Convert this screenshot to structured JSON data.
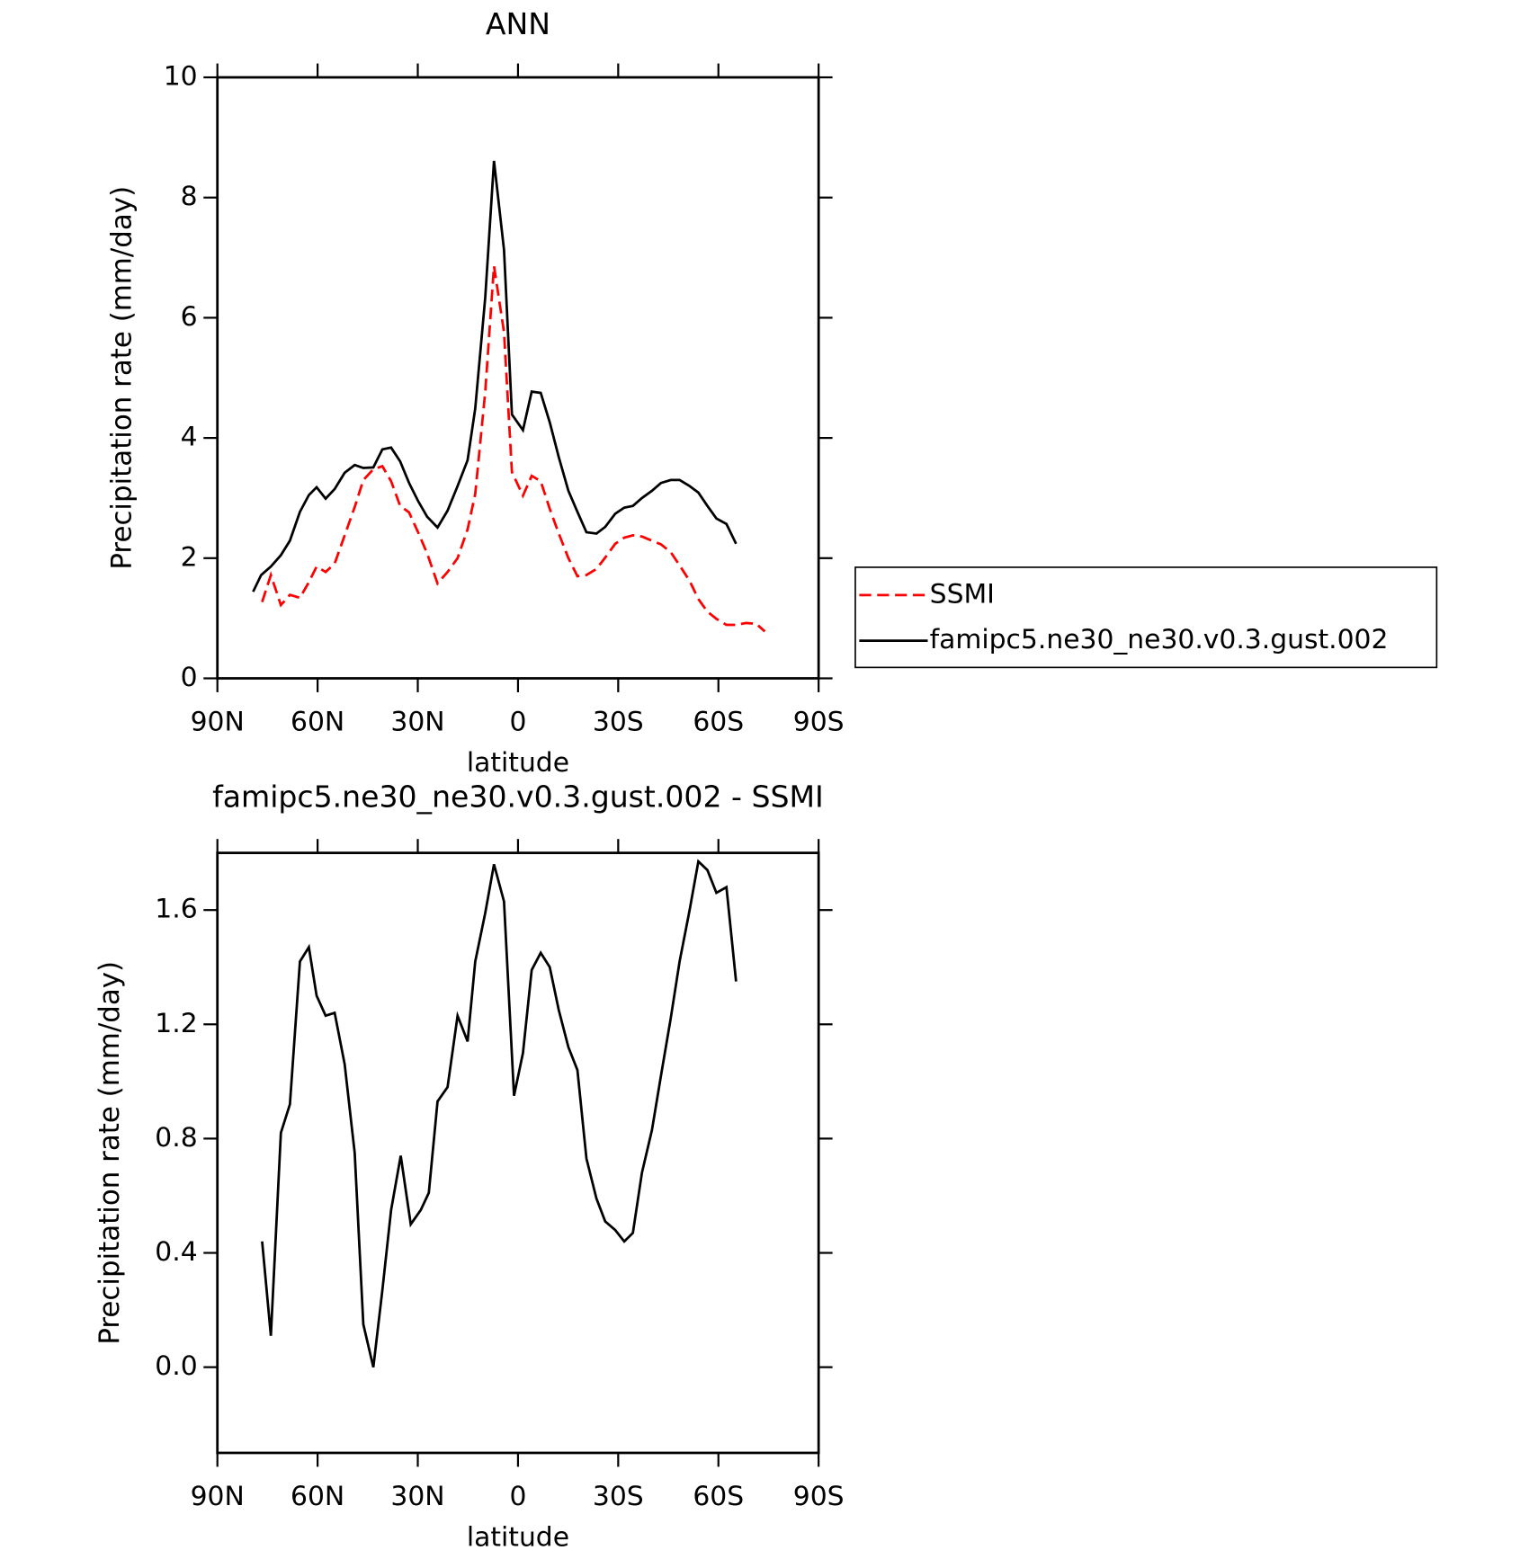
{
  "chart_data": [
    {
      "type": "line",
      "title": "ANN",
      "x_label": "latitude",
      "y_label": "Precipitation rate (mm/day)",
      "xlim": [
        90,
        -90
      ],
      "xticks": [
        {
          "value": 90,
          "label": "90N"
        },
        {
          "value": 60,
          "label": "60N"
        },
        {
          "value": 30,
          "label": "30N"
        },
        0,
        {
          "value": -30,
          "label": "30S"
        },
        {
          "value": -60,
          "label": "60S"
        },
        {
          "value": -90,
          "label": "90S"
        }
      ],
      "ylim": [
        0,
        10
      ],
      "yticks": [
        0,
        2,
        4,
        6,
        8,
        10
      ],
      "legend": "outside-right",
      "series": [
        {
          "name": "SSMI",
          "color": "#ff0000",
          "linestyle": "dashed",
          "x": [
            76.6,
            74.0,
            71.0,
            68.3,
            65.3,
            62.6,
            60.3,
            57.6,
            54.9,
            51.9,
            48.9,
            46.3,
            43.3,
            40.6,
            38.0,
            35.3,
            32.6,
            29.9,
            27.2,
            24.1,
            21.1,
            18.1,
            15.1,
            12.8,
            9.8,
            7.2,
            4.2,
            1.8,
            -1.5,
            -4.1,
            -6.8,
            -9.5,
            -12.2,
            -15.1,
            -17.8,
            -20.5,
            -23.5,
            -26.1,
            -29.1,
            -31.8,
            -34.4,
            -37.1,
            -40.1,
            -42.8,
            -45.7,
            -48.4,
            -51.4,
            -54.0,
            -56.7,
            -59.4,
            -62.4,
            -65.3,
            -68.3,
            -71.3,
            -73.9
          ],
          "values": [
            1.27,
            1.72,
            1.22,
            1.39,
            1.34,
            1.6,
            1.86,
            1.77,
            1.91,
            2.38,
            2.85,
            3.3,
            3.48,
            3.53,
            3.28,
            2.87,
            2.76,
            2.43,
            2.08,
            1.58,
            1.77,
            2.0,
            2.48,
            3.07,
            4.77,
            6.86,
            5.76,
            3.43,
            3.04,
            3.37,
            3.28,
            2.82,
            2.41,
            2.0,
            1.7,
            1.72,
            1.82,
            2.01,
            2.24,
            2.34,
            2.38,
            2.36,
            2.29,
            2.23,
            2.1,
            1.88,
            1.62,
            1.32,
            1.11,
            0.99,
            0.89,
            0.89,
            0.92,
            0.91,
            0.78
          ]
        },
        {
          "name": "famipc5.ne30_ne30.v0.3.gust.002",
          "color": "#000000",
          "linestyle": "solid",
          "x": [
            79.3,
            76.9,
            74.0,
            71.0,
            68.3,
            65.3,
            62.6,
            60.3,
            57.6,
            54.9,
            51.9,
            48.9,
            46.3,
            43.3,
            40.6,
            38.0,
            35.3,
            32.6,
            29.9,
            27.2,
            24.1,
            21.1,
            18.1,
            15.1,
            12.8,
            9.8,
            7.2,
            4.2,
            1.8,
            -1.5,
            -4.1,
            -6.8,
            -9.5,
            -12.2,
            -15.1,
            -17.8,
            -20.5,
            -23.5,
            -26.1,
            -29.1,
            -31.8,
            -34.4,
            -37.1,
            -40.1,
            -42.8,
            -45.7,
            -48.4,
            -51.4,
            -54.0,
            -56.7,
            -59.4,
            -62.4,
            -65.3
          ],
          "values": [
            1.44,
            1.72,
            1.86,
            2.05,
            2.29,
            2.77,
            3.05,
            3.18,
            2.99,
            3.15,
            3.42,
            3.55,
            3.5,
            3.51,
            3.81,
            3.84,
            3.61,
            3.25,
            2.95,
            2.69,
            2.51,
            2.79,
            3.2,
            3.63,
            4.49,
            6.34,
            8.61,
            7.13,
            4.39,
            4.13,
            4.77,
            4.75,
            4.26,
            3.68,
            3.12,
            2.77,
            2.43,
            2.41,
            2.52,
            2.74,
            2.84,
            2.87,
            3.0,
            3.12,
            3.25,
            3.3,
            3.3,
            3.2,
            3.09,
            2.87,
            2.66,
            2.57,
            2.24
          ]
        }
      ]
    },
    {
      "type": "line",
      "title": "famipc5.ne30_ne30.v0.3.gust.002 - SSMI",
      "x_label": "latitude",
      "y_label": "Precipitation rate (mm/day)",
      "xlim": [
        90,
        -90
      ],
      "xticks": [
        {
          "value": 90,
          "label": "90N"
        },
        {
          "value": 60,
          "label": "60N"
        },
        {
          "value": 30,
          "label": "30N"
        },
        0,
        {
          "value": -30,
          "label": "30S"
        },
        {
          "value": -60,
          "label": "60S"
        },
        {
          "value": -90,
          "label": "90S"
        }
      ],
      "ylim": [
        -0.3,
        1.8
      ],
      "yticks": [
        {
          "value": 0,
          "label": "0.0"
        },
        0.4,
        0.8,
        1.2,
        1.6
      ],
      "series": [
        {
          "color": "#000000",
          "linestyle": "solid",
          "x": [
            76.6,
            74.0,
            71.0,
            68.3,
            65.3,
            62.6,
            60.3,
            57.6,
            54.9,
            51.9,
            48.9,
            46.3,
            43.3,
            40.6,
            38.0,
            35.1,
            32.1,
            29.1,
            26.7,
            24.1,
            21.1,
            18.1,
            15.1,
            12.8,
            9.8,
            7.2,
            4.2,
            1.2,
            -1.5,
            -4.1,
            -6.8,
            -9.5,
            -12.2,
            -15.1,
            -17.8,
            -20.5,
            -23.5,
            -26.1,
            -29.1,
            -31.8,
            -34.4,
            -37.1,
            -40.1,
            -42.8,
            -45.7,
            -48.4,
            -51.4,
            -54.0,
            -56.7,
            -59.4,
            -62.4,
            -65.3
          ],
          "values": [
            0.44,
            0.11,
            0.82,
            0.92,
            1.42,
            1.47,
            1.3,
            1.23,
            1.24,
            1.06,
            0.75,
            0.15,
            0.0,
            0.27,
            0.55,
            0.74,
            0.5,
            0.55,
            0.61,
            0.93,
            0.98,
            1.23,
            1.14,
            1.42,
            1.59,
            1.76,
            1.63,
            0.95,
            1.1,
            1.39,
            1.45,
            1.4,
            1.25,
            1.12,
            1.04,
            0.73,
            0.59,
            0.51,
            0.48,
            0.44,
            0.47,
            0.68,
            0.83,
            1.02,
            1.22,
            1.42,
            1.6,
            1.77,
            1.74,
            1.66,
            1.68,
            1.35
          ]
        }
      ]
    }
  ]
}
